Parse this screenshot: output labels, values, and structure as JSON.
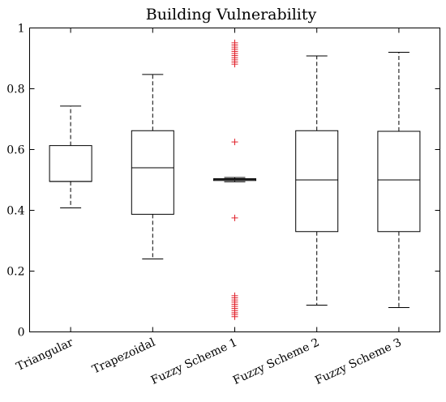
{
  "chart_data": {
    "type": "box",
    "title": "Building Vulnerability",
    "xlabel": "",
    "ylabel": "",
    "ylim": [
      0,
      1
    ],
    "yticks": [
      0,
      0.2,
      0.4,
      0.6,
      0.8,
      1
    ],
    "ytick_labels": [
      "0",
      "0.2",
      "0.4",
      "0.6",
      "0.8",
      "1"
    ],
    "grid": false,
    "outlier_color": "#e0202a",
    "categories": [
      "Triangular",
      "Trapezoidal",
      "Fuzzy Scheme 1",
      "Fuzzy Scheme 2",
      "Fuzzy Scheme 3"
    ],
    "boxes": [
      {
        "name": "Triangular",
        "whisker_low": 0.408,
        "q1": 0.495,
        "median": 0.495,
        "q3": 0.613,
        "whisker_high": 0.743,
        "outliers": []
      },
      {
        "name": "Trapezoidal",
        "whisker_low": 0.24,
        "q1": 0.387,
        "median": 0.54,
        "q3": 0.662,
        "whisker_high": 0.847,
        "outliers": []
      },
      {
        "name": "Fuzzy Scheme 1",
        "whisker_low": 0.494,
        "q1": 0.498,
        "median": 0.501,
        "q3": 0.504,
        "whisker_high": 0.508,
        "outliers": [
          0.05,
          0.057,
          0.063,
          0.07,
          0.077,
          0.084,
          0.091,
          0.098,
          0.105,
          0.112,
          0.119,
          0.375,
          0.625,
          0.881,
          0.888,
          0.895,
          0.902,
          0.909,
          0.916,
          0.923,
          0.93,
          0.937,
          0.944,
          0.951
        ]
      },
      {
        "name": "Fuzzy Scheme 2",
        "whisker_low": 0.088,
        "q1": 0.33,
        "median": 0.5,
        "q3": 0.662,
        "whisker_high": 0.908,
        "outliers": []
      },
      {
        "name": "Fuzzy Scheme 3",
        "whisker_low": 0.08,
        "q1": 0.33,
        "median": 0.5,
        "q3": 0.66,
        "whisker_high": 0.92,
        "outliers": []
      }
    ]
  }
}
